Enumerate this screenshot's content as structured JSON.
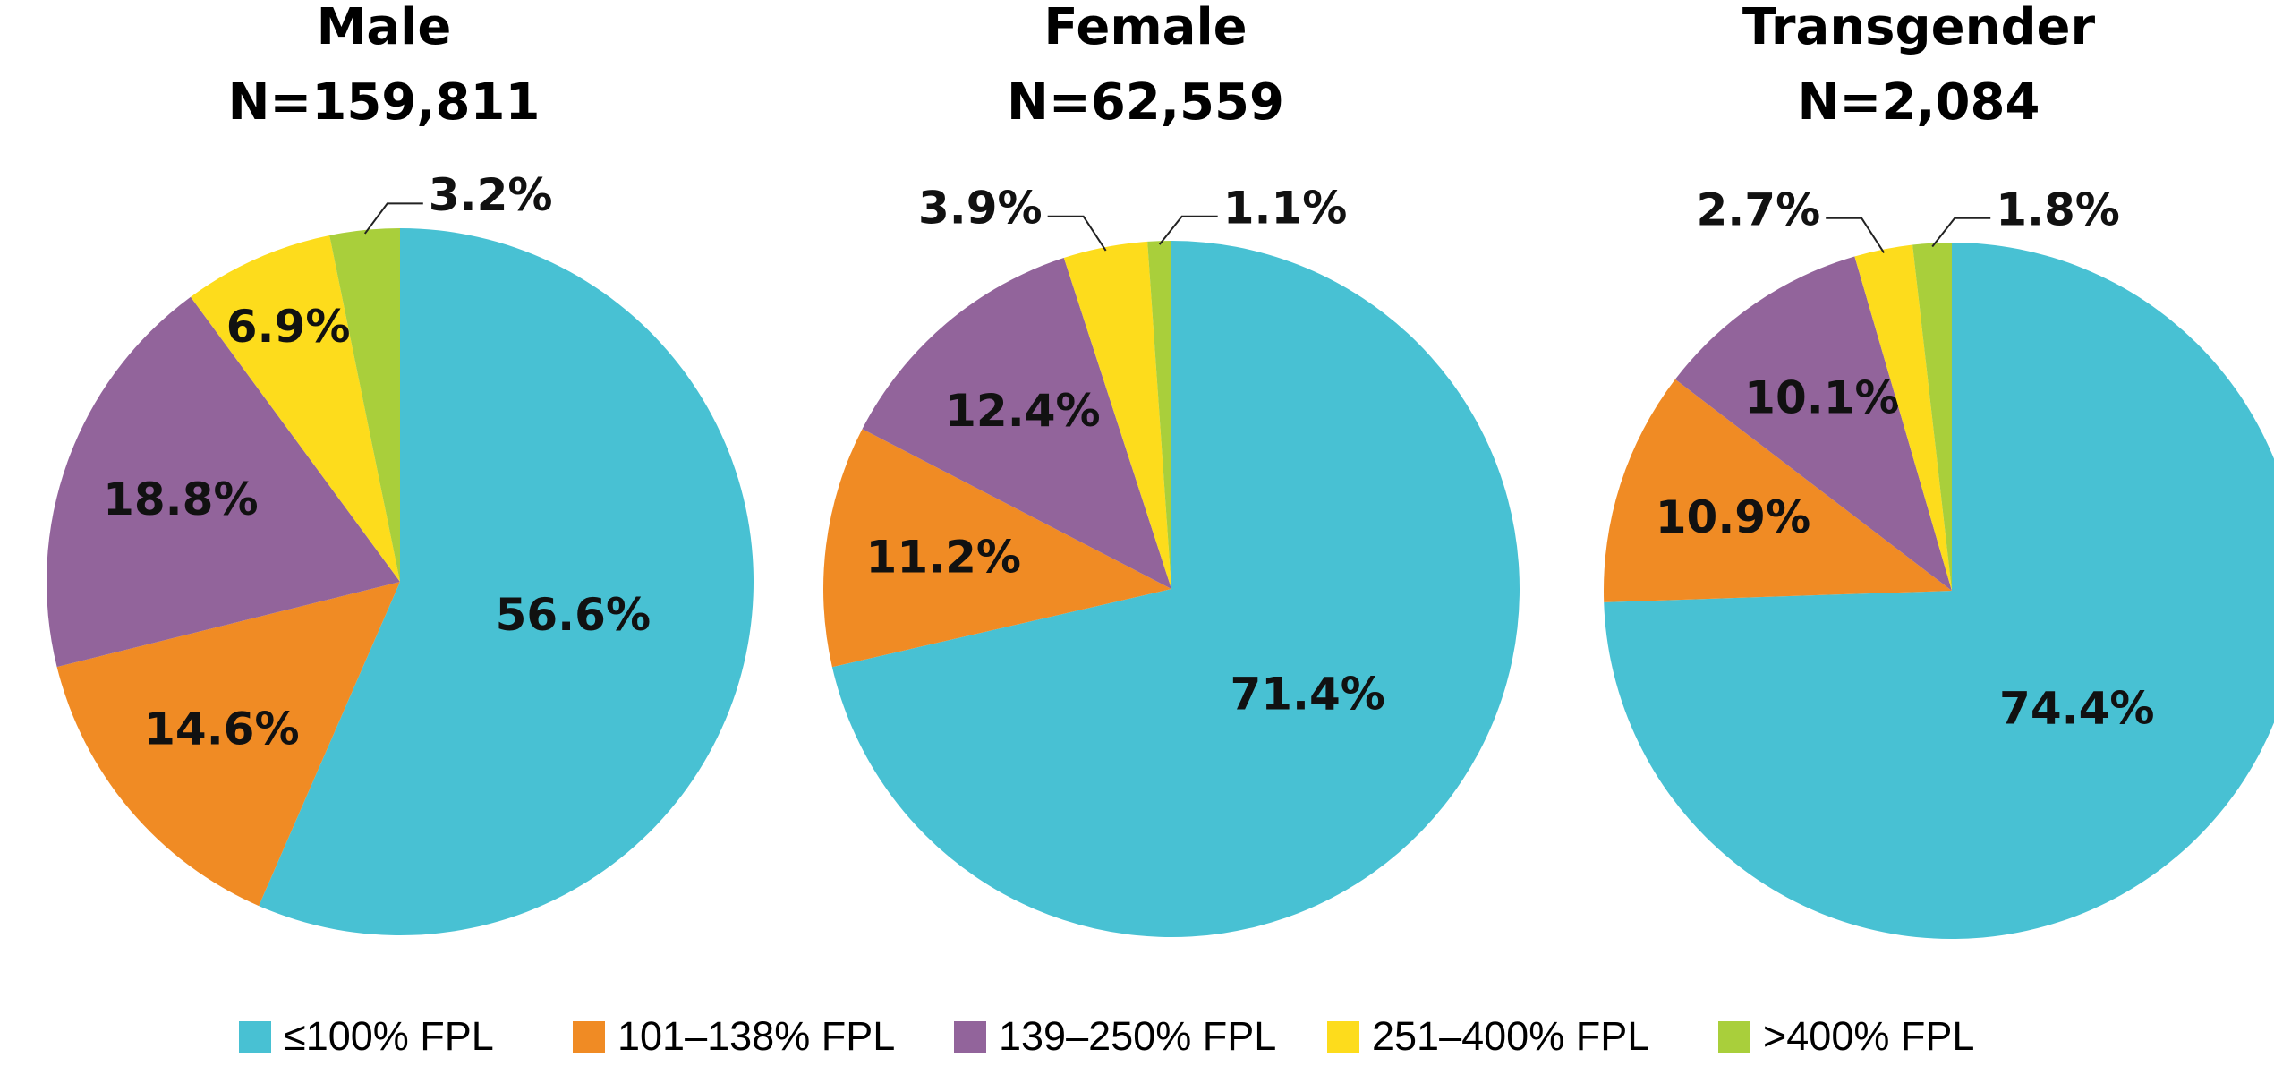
{
  "legend": {
    "labels": [
      "≤100% FPL",
      "101–138% FPL",
      "139–250% FPL",
      "251–400% FPL",
      ">400% FPL"
    ],
    "colors": [
      "#48c1d3",
      "#f08b24",
      "#92649b",
      "#fddc1c",
      "#a9cf3b"
    ]
  },
  "chart_data": [
    {
      "type": "pie",
      "title": "Male",
      "subtitle": "N=159,811",
      "values": [
        56.6,
        14.6,
        18.8,
        6.9,
        3.2
      ],
      "value_labels": [
        "56.6%",
        "14.6%",
        "18.8%",
        "6.9%",
        "3.2%"
      ]
    },
    {
      "type": "pie",
      "title": "Female",
      "subtitle": "N=62,559",
      "values": [
        71.4,
        11.2,
        12.4,
        3.9,
        1.1
      ],
      "value_labels": [
        "71.4%",
        "11.2%",
        "12.4%",
        "3.9%",
        "1.1%"
      ]
    },
    {
      "type": "pie",
      "title": "Transgender",
      "subtitle": "N=2,084",
      "values": [
        74.4,
        10.9,
        10.1,
        2.7,
        1.8
      ],
      "value_labels": [
        "74.4%",
        "10.9%",
        "10.1%",
        "2.7%",
        "1.8%"
      ]
    }
  ]
}
